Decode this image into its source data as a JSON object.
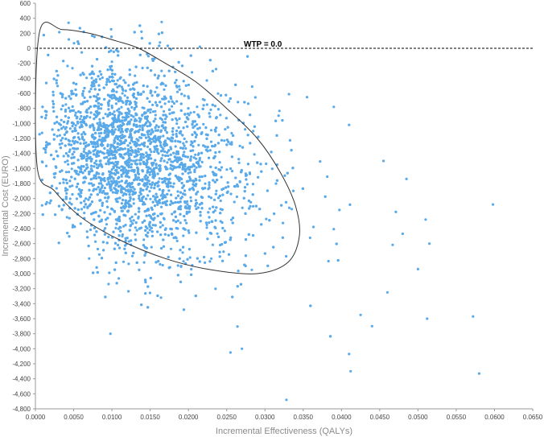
{
  "chart_data": {
    "type": "scatter",
    "xlabel": "Incremental Effectiveness (QALYs)",
    "ylabel": "Incremental Cost (EURO)",
    "xlim": [
      0,
      0.065
    ],
    "ylim": [
      -4800,
      600
    ],
    "x_ticks": [
      "0.0000",
      "0.0050",
      "0.0100",
      "0.0150",
      "0.0200",
      "0.0250",
      "0.0300",
      "0.0350",
      "0.0400",
      "0.0450",
      "0.0500",
      "0.0550",
      "0.0600",
      "0.0650"
    ],
    "y_ticks": [
      "600",
      "400",
      "200",
      "0",
      "-200",
      "-400",
      "-600",
      "-800",
      "-1,000",
      "-1,200",
      "-1,400",
      "-1,600",
      "-1,800",
      "-2,000",
      "-2,200",
      "-2,400",
      "-2,600",
      "-2,800",
      "-3,000",
      "-3,200",
      "-3,400",
      "-3,600",
      "-3,800",
      "-4,000",
      "-4,200",
      "-4,400",
      "-4,600",
      "-4,800"
    ],
    "grid": false,
    "point_color": "#5aaaea",
    "wtp_line": {
      "label": "WTP = 0.0",
      "y": 0
    },
    "ellipse": {
      "center": [
        0.0135,
        -1350
      ],
      "path": [
        [
          0.0005,
          200
        ],
        [
          0.0035,
          250
        ],
        [
          0.007,
          200
        ],
        [
          0.0105,
          100
        ],
        [
          0.0135,
          0
        ],
        [
          0.017,
          -200
        ],
        [
          0.021,
          -450
        ],
        [
          0.025,
          -800
        ],
        [
          0.029,
          -1200
        ],
        [
          0.032,
          -1650
        ],
        [
          0.034,
          -2100
        ],
        [
          0.0345,
          -2500
        ],
        [
          0.033,
          -2850
        ],
        [
          0.029,
          -3000
        ],
        [
          0.023,
          -2950
        ],
        [
          0.017,
          -2800
        ],
        [
          0.011,
          -2550
        ],
        [
          0.006,
          -2250
        ],
        [
          0.0025,
          -1900
        ],
        [
          0.0002,
          -1550
        ]
      ]
    },
    "cloud": {
      "n_points": 3800,
      "description_free_params": true,
      "main_cluster": {
        "x_mean": 0.0125,
        "x_sd": 0.0055,
        "y_mean": -1450,
        "y_sd": 520,
        "slope": -42000
      },
      "x_range": [
        0.0005,
        0.06
      ],
      "y_range": [
        -4700,
        350
      ]
    },
    "outliers": [
      {
        "x": 0.0098,
        "y": -3800
      },
      {
        "x": 0.0165,
        "y": 350
      },
      {
        "x": 0.0215,
        "y": 20
      },
      {
        "x": 0.0255,
        "y": -4050
      },
      {
        "x": 0.027,
        "y": -4000
      },
      {
        "x": 0.0328,
        "y": -4680
      },
      {
        "x": 0.0355,
        "y": -650
      },
      {
        "x": 0.039,
        "y": -780
      },
      {
        "x": 0.041,
        "y": -1020
      },
      {
        "x": 0.0412,
        "y": -4300
      },
      {
        "x": 0.041,
        "y": -4070
      },
      {
        "x": 0.0455,
        "y": -1500
      },
      {
        "x": 0.0485,
        "y": -1740
      },
      {
        "x": 0.048,
        "y": -2470
      },
      {
        "x": 0.051,
        "y": -2280
      },
      {
        "x": 0.0515,
        "y": -2600
      },
      {
        "x": 0.0512,
        "y": -3600
      },
      {
        "x": 0.0572,
        "y": -3570
      },
      {
        "x": 0.058,
        "y": -4330
      },
      {
        "x": 0.0598,
        "y": -2080
      },
      {
        "x": 0.05,
        "y": -2940
      },
      {
        "x": 0.046,
        "y": -3250
      },
      {
        "x": 0.044,
        "y": -3700
      },
      {
        "x": 0.0425,
        "y": -3550
      }
    ]
  }
}
